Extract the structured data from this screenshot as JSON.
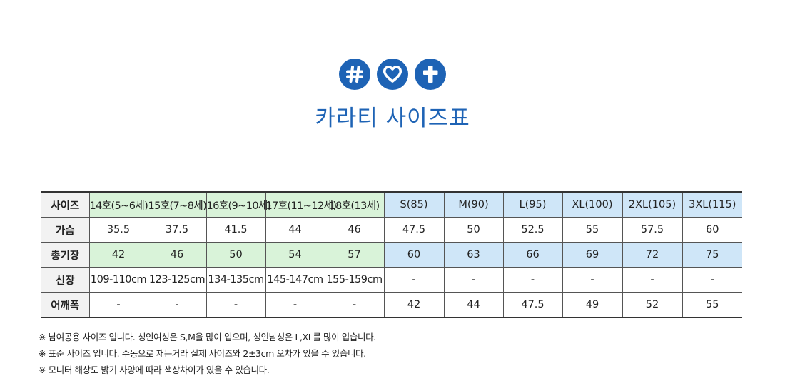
{
  "icons": [
    "hashtag-icon",
    "heart-icon",
    "cross-icon"
  ],
  "colors": {
    "brand": "#1e63b5",
    "kids": "#d9f3d9",
    "adults": "#cfe6f8",
    "label": "#f2f2f2"
  },
  "title": "카라티 사이즈표",
  "table": {
    "headers": [
      "사이즈",
      "14호(5~6세)",
      "15호(7~8세)",
      "16호(9~10세)",
      "17호(11~12세)",
      "18호(13세)",
      "S(85)",
      "M(90)",
      "L(95)",
      "XL(100)",
      "2XL(105)",
      "3XL(115)"
    ],
    "rows": [
      {
        "label": "가슴",
        "values": [
          "35.5",
          "37.5",
          "41.5",
          "44",
          "46",
          "47.5",
          "50",
          "52.5",
          "55",
          "57.5",
          "60"
        ]
      },
      {
        "label": "총기장",
        "values": [
          "42",
          "46",
          "50",
          "54",
          "57",
          "60",
          "63",
          "66",
          "69",
          "72",
          "75"
        ]
      },
      {
        "label": "신장",
        "values": [
          "109-110cm",
          "123-125cm",
          "134-135cm",
          "145-147cm",
          "155-159cm",
          "-",
          "-",
          "-",
          "-",
          "-",
          "-"
        ]
      },
      {
        "label": "어깨폭",
        "values": [
          "-",
          "-",
          "-",
          "-",
          "-",
          "42",
          "44",
          "47.5",
          "49",
          "52",
          "55"
        ]
      }
    ]
  },
  "notes": [
    "※ 남여공용 사이즈 입니다. 성인여성은 S,M을 많이 입으며, 성인남성은 L,XL를 많이 입습니다.",
    "※ 표준 사이즈 입니다.  수동으로 재는거라 실제 사이즈와 2±3cm 오차가 있을 수 있습니다.",
    "※ 모니터 해상도 밝기 사양에 따라 색상차이가 있을 수 있습니다."
  ]
}
